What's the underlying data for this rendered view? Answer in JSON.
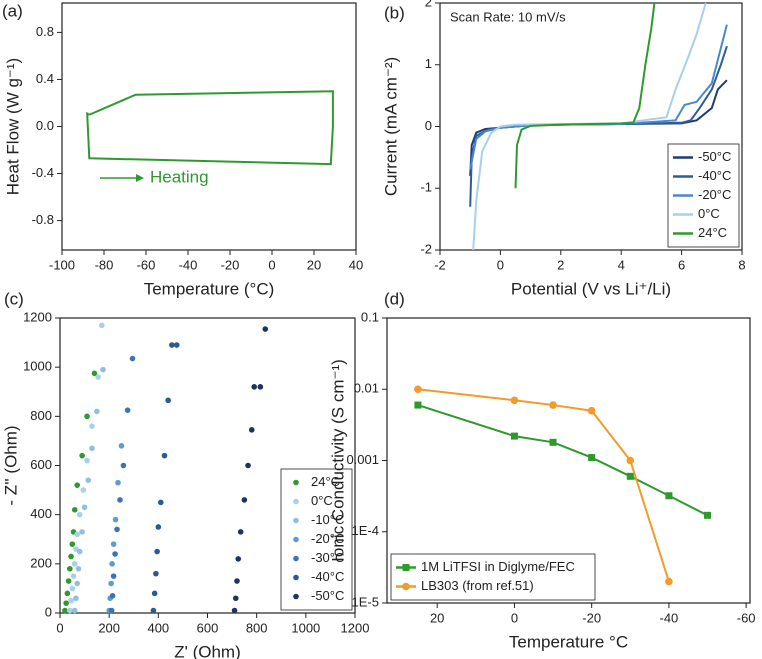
{
  "chart_data": [
    {
      "type": "line",
      "panel_label": "(a)",
      "xlabel": "Temperature (°C)",
      "ylabel": "Heat Flow (W g⁻¹)",
      "annotation": "Heating",
      "xlim": [
        -100,
        40
      ],
      "xticks": [
        -100,
        -80,
        -60,
        -40,
        -20,
        0,
        20,
        40
      ],
      "ylim": [
        -1.05,
        1.05
      ],
      "yticks": [
        -0.8,
        -0.4,
        {
          "value": 0,
          "label": "0.0"
        },
        0.4,
        0.8
      ],
      "series": [
        {
          "name": "Heating",
          "color": "#2e9a2e",
          "x": [
            -87,
            -88,
            -87,
            28,
            29,
            29,
            -65,
            -87
          ],
          "values": [
            0.1,
            0.11,
            -0.27,
            -0.32,
            0.0,
            0.3,
            0.27,
            0.1
          ]
        }
      ]
    },
    {
      "type": "line",
      "panel_label": "(b)",
      "xlabel": "Potential (V vs Li⁺/Li)",
      "ylabel": "Current (mA cm⁻²)",
      "annotation": "Scan Rate: 10 mV/s",
      "xlim": [
        -2,
        8
      ],
      "xticks": [
        -2,
        0,
        2,
        4,
        6,
        8
      ],
      "ylim": [
        -2,
        2
      ],
      "yticks": [
        -2,
        -1,
        0,
        1,
        2
      ],
      "legend": "lower right",
      "series": [
        {
          "name": "-50°C",
          "color": "#1f3d73",
          "x": [
            -1,
            -0.95,
            -0.8,
            -0.5,
            0,
            1,
            2,
            4,
            6,
            6.5,
            7,
            7.2,
            7.5
          ],
          "values": [
            -0.8,
            -0.3,
            -0.1,
            -0.04,
            -0.02,
            0.02,
            0.03,
            0.04,
            0.05,
            0.1,
            0.3,
            0.6,
            0.75
          ]
        },
        {
          "name": "-40°C",
          "color": "#2e5c9a",
          "x": [
            -1,
            -0.95,
            -0.8,
            -0.4,
            0,
            1,
            2,
            4,
            6,
            6.3,
            6.6,
            7,
            7.3,
            7.5
          ],
          "values": [
            -1.3,
            -0.5,
            -0.15,
            -0.05,
            -0.02,
            0.02,
            0.03,
            0.04,
            0.06,
            0.1,
            0.3,
            0.6,
            1.0,
            1.3
          ]
        },
        {
          "name": "-20°C",
          "color": "#4a89c8",
          "x": [
            -1,
            -0.8,
            -0.5,
            0,
            1,
            2,
            4,
            5.8,
            6.1,
            6.5,
            7,
            7.5
          ],
          "values": [
            -0.7,
            -0.2,
            -0.08,
            -0.02,
            0.02,
            0.03,
            0.04,
            0.1,
            0.35,
            0.4,
            0.7,
            1.65
          ]
        },
        {
          "name": "0°C",
          "color": "#a9cfea",
          "x": [
            -0.9,
            -0.8,
            -0.6,
            -0.3,
            0,
            0.5,
            2,
            4,
            5.5,
            5.8,
            6.2,
            6.5,
            6.8
          ],
          "values": [
            -2,
            -1.2,
            -0.4,
            -0.1,
            0,
            0.03,
            0.04,
            0.05,
            0.15,
            0.6,
            1.1,
            1.5,
            2
          ]
        },
        {
          "name": "24°C",
          "color": "#2e9a2e",
          "x": [
            0.5,
            0.55,
            0.7,
            1,
            2,
            4,
            4.4,
            4.6,
            4.8,
            5.0,
            5.1
          ],
          "values": [
            -1,
            -0.3,
            -0.05,
            0.01,
            0.03,
            0.05,
            0.06,
            0.3,
            1.0,
            1.6,
            2
          ]
        }
      ]
    },
    {
      "type": "scatter",
      "panel_label": "(c)",
      "xlabel": "Z' (Ohm)",
      "ylabel": "- Z'' (Ohm)",
      "xlim": [
        0,
        1200
      ],
      "xticks": [
        0,
        200,
        400,
        600,
        800,
        1000,
        1200
      ],
      "ylim": [
        0,
        1200
      ],
      "yticks": [
        0,
        200,
        400,
        600,
        800,
        1000,
        1200
      ],
      "legend": "lower right",
      "series": [
        {
          "name": "24°C",
          "color": "#2e9a2e",
          "x": [
            20,
            25,
            30,
            35,
            40,
            45,
            50,
            55,
            60,
            70,
            90,
            110,
            140
          ],
          "values": [
            10,
            40,
            80,
            130,
            180,
            230,
            280,
            330,
            420,
            520,
            640,
            800,
            975
          ]
        },
        {
          "name": "0°C",
          "color": "#a9cfea",
          "x": [
            40,
            45,
            50,
            55,
            60,
            65,
            70,
            80,
            95,
            110,
            130,
            155,
            170
          ],
          "values": [
            10,
            50,
            100,
            150,
            200,
            260,
            320,
            400,
            500,
            620,
            760,
            960,
            1170
          ]
        },
        {
          "name": "-10°C",
          "color": "#8fbfe3",
          "x": [
            60,
            65,
            70,
            75,
            80,
            90,
            100,
            115,
            130,
            150,
            175
          ],
          "values": [
            10,
            60,
            120,
            180,
            250,
            330,
            430,
            540,
            670,
            820,
            990
          ]
        },
        {
          "name": "-20°C",
          "color": "#5c9bd5",
          "x": [
            200,
            204,
            208,
            212,
            218,
            226,
            236,
            250
          ],
          "values": [
            10,
            60,
            120,
            200,
            280,
            380,
            530,
            680
          ]
        },
        {
          "name": "-30°C",
          "color": "#3a74b3",
          "x": [
            210,
            214,
            218,
            224,
            232,
            244,
            258,
            275,
            295
          ],
          "values": [
            10,
            70,
            150,
            240,
            340,
            460,
            600,
            825,
            1035
          ]
        },
        {
          "name": "-40°C",
          "color": "#285a93",
          "x": [
            380,
            385,
            390,
            395,
            400,
            410,
            425,
            440,
            455,
            475
          ],
          "values": [
            10,
            80,
            160,
            250,
            350,
            450,
            640,
            865,
            1090,
            1090
          ]
        },
        {
          "name": "-50°C",
          "color": "#1a3565",
          "x": [
            710,
            715,
            720,
            725,
            735,
            750,
            765,
            780,
            790,
            815,
            835
          ],
          "values": [
            10,
            60,
            130,
            220,
            330,
            460,
            600,
            745,
            920,
            920,
            1155
          ]
        }
      ]
    },
    {
      "type": "line",
      "panel_label": "(d)",
      "xlabel": "Temperature °C",
      "ylabel": "Ionic Conductivity (S cm⁻¹)",
      "xlim": [
        33,
        -61
      ],
      "xticks": [
        20,
        0,
        -20,
        -40,
        -60
      ],
      "ylim": [
        1e-05,
        0.1
      ],
      "ylog": true,
      "yticks": [
        {
          "value": 1e-05,
          "label": "1E-5"
        },
        {
          "value": 0.0001,
          "label": "1E-4"
        },
        0.001,
        0.01,
        0.1
      ],
      "legend": "lower left",
      "series": [
        {
          "name": "1M LiTFSI in Diglyme/FEC",
          "color": "#2e9a2e",
          "marker": "square",
          "x": [
            25,
            0,
            -10,
            -20,
            -30,
            -40,
            -50
          ],
          "values": [
            0.006,
            0.0022,
            0.0018,
            0.0011,
            0.0006,
            0.00032,
            0.00017
          ]
        },
        {
          "name": "LB303 (from ref.51)",
          "color": "#f39a2b",
          "marker": "circle",
          "x": [
            25,
            0,
            -10,
            -20,
            -30,
            -40
          ],
          "values": [
            0.01,
            0.007,
            0.006,
            0.005,
            0.001,
            2e-05
          ]
        }
      ]
    }
  ]
}
